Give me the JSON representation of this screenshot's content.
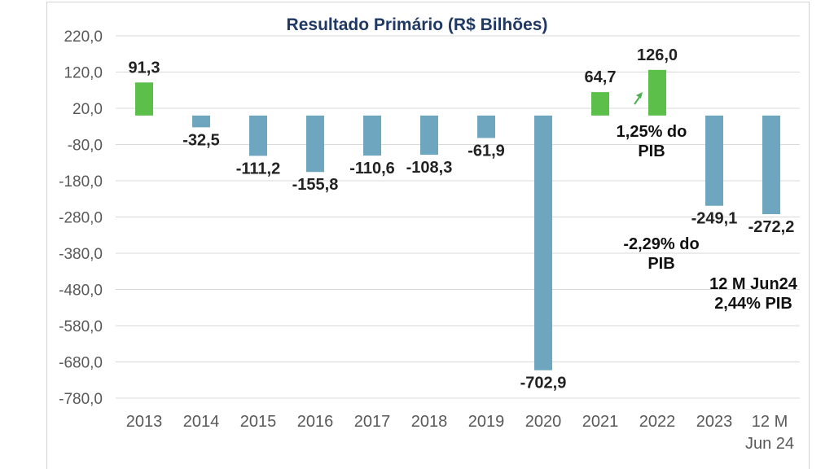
{
  "chart_data": {
    "type": "bar",
    "title": "Resultado Primário (R$ Bilhões)",
    "categories": [
      "2013",
      "2014",
      "2015",
      "2016",
      "2017",
      "2018",
      "2019",
      "2020",
      "2021",
      "2022",
      "2023",
      "12 M Jun 24"
    ],
    "category_lines": [
      [
        "2013"
      ],
      [
        "2014"
      ],
      [
        "2015"
      ],
      [
        "2016"
      ],
      [
        "2017"
      ],
      [
        "2018"
      ],
      [
        "2019"
      ],
      [
        "2020"
      ],
      [
        "2021"
      ],
      [
        "2022"
      ],
      [
        "2023"
      ],
      [
        "12 M",
        "Jun 24"
      ]
    ],
    "values": [
      91.3,
      -32.5,
      -111.2,
      -155.8,
      -110.6,
      -108.3,
      -61.9,
      -702.9,
      64.7,
      126.0,
      -249.1,
      -272.2
    ],
    "value_labels": [
      "91,3",
      "-32,5",
      "-111,2",
      "-155,8",
      "-110,6",
      "-108,3",
      "-61,9",
      "-702,9",
      "64,7",
      "126,0",
      "-249,1",
      "-272,2"
    ],
    "ylim": [
      -780,
      220
    ],
    "yticks": [
      220,
      120,
      20,
      -80,
      -180,
      -280,
      -380,
      -480,
      -580,
      -680,
      -780
    ],
    "ytick_labels": [
      "220,0",
      "120,0",
      "20,0",
      "-80,0",
      "-180,0",
      "-280,0",
      "-380,0",
      "-480,0",
      "-580,0",
      "-680,0",
      "-780,0"
    ],
    "xlabel": "",
    "ylabel": "",
    "grid": true,
    "colors": {
      "positive": "#5cbf4a",
      "negative": "#6ea5bf",
      "title": "#1f3864",
      "grid": "#d9d9d9",
      "arrow": "#4caf50"
    },
    "annotations": [
      {
        "lines": [
          "1,25% do",
          "PIB"
        ],
        "category": "2022"
      },
      {
        "lines": [
          "-2,29% do",
          "PIB"
        ],
        "category": "2023"
      },
      {
        "lines": [
          "12 M  Jun24",
          "2,44% PIB"
        ],
        "category": "12 M Jun 24"
      }
    ]
  }
}
